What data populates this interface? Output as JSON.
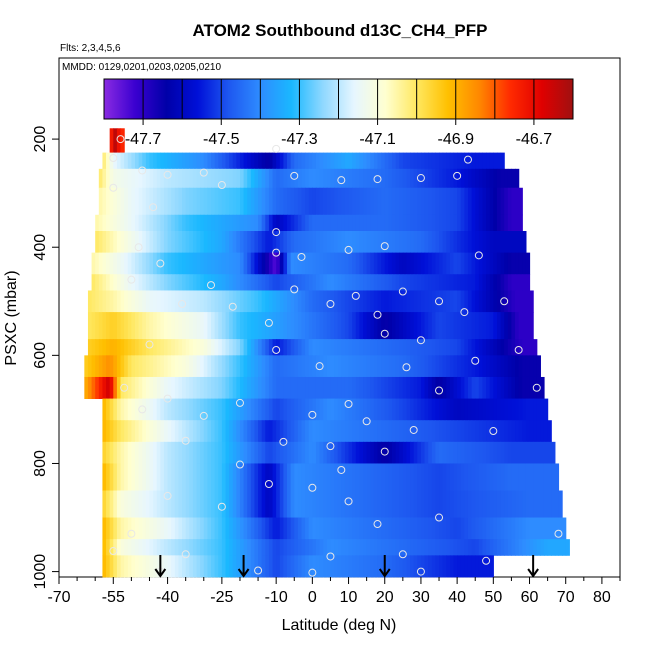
{
  "chart_data": {
    "type": "heatmap",
    "title": "ATOM2 Southbound d13C_CH4_PFP",
    "subtitle_flights": "Flts: 2,3,4,5,6",
    "subtitle_dates": "MMDD: 0129,0201,0203,0205,0210",
    "xlabel": "Latitude (deg N)",
    "ylabel": "PSXC (mbar)",
    "xlim": [
      -70,
      85
    ],
    "ylim": [
      1010,
      50
    ],
    "x_ticks": [
      -70,
      -55,
      -40,
      -25,
      -10,
      0,
      10,
      20,
      30,
      40,
      50,
      60,
      70,
      80
    ],
    "x_tick_labels": [
      "-70",
      "-55",
      "-40",
      "-25",
      "-10",
      "0",
      "10",
      "20",
      "30",
      "40",
      "50",
      "60",
      "70",
      "80"
    ],
    "y_ticks": [
      200,
      400,
      600,
      800,
      1000
    ],
    "y_tick_labels": [
      "200",
      "400",
      "600",
      "800",
      "1000"
    ],
    "colorbar": {
      "range": [
        -47.8,
        -46.6
      ],
      "tick_values": [
        -47.7,
        -47.5,
        -47.3,
        -47.1,
        -46.9,
        -46.7
      ],
      "tick_labels": [
        "-47.7",
        "-47.5",
        "-47.3",
        "-47.1",
        "-46.9",
        "-46.7"
      ],
      "colors": [
        "#8a2be2",
        "#3a00d0",
        "#0000a8",
        "#0010d8",
        "#1e58f0",
        "#2e8cff",
        "#1ab8ff",
        "#8fd8ff",
        "#e6f6ff",
        "#ffffd0",
        "#ffe860",
        "#ffc000",
        "#ff8800",
        "#ff2a00",
        "#e00000",
        "#a01010"
      ]
    },
    "bands": [
      {
        "pmin": 180,
        "pmax": 225,
        "xmin": -56,
        "xmax": -52,
        "segments": [
          [
            -56,
            -46.85
          ],
          [
            -55,
            -46.6
          ],
          [
            -53,
            -46.75
          ]
        ]
      },
      {
        "pmin": 225,
        "pmax": 255,
        "xmin": -58,
        "xmax": 53,
        "segments": [
          [
            -58,
            -47.0
          ],
          [
            -55,
            -47.15
          ],
          [
            -45,
            -47.3
          ],
          [
            -30,
            -47.4
          ],
          [
            -12,
            -47.65
          ],
          [
            -5,
            -47.45
          ],
          [
            10,
            -47.35
          ],
          [
            25,
            -47.5
          ],
          [
            45,
            -47.55
          ]
        ]
      },
      {
        "pmin": 255,
        "pmax": 290,
        "xmin": -59,
        "xmax": 57,
        "segments": [
          [
            -59,
            -47.0
          ],
          [
            -55,
            -47.12
          ],
          [
            -40,
            -47.2
          ],
          [
            -20,
            -47.25
          ],
          [
            -10,
            -47.45
          ],
          [
            0,
            -47.4
          ],
          [
            20,
            -47.45
          ],
          [
            40,
            -47.55
          ],
          [
            52,
            -47.65
          ]
        ]
      },
      {
        "pmin": 290,
        "pmax": 340,
        "xmin": -59,
        "xmax": 58,
        "segments": [
          [
            -59,
            -47.05
          ],
          [
            -50,
            -47.15
          ],
          [
            -35,
            -47.25
          ],
          [
            -20,
            -47.3
          ],
          [
            -10,
            -47.45
          ],
          [
            0,
            -47.5
          ],
          [
            20,
            -47.45
          ],
          [
            40,
            -47.5
          ],
          [
            55,
            -47.7
          ]
        ]
      },
      {
        "pmin": 340,
        "pmax": 370,
        "xmin": -60,
        "xmax": 58,
        "segments": [
          [
            -60,
            -47.05
          ],
          [
            -50,
            -47.15
          ],
          [
            -35,
            -47.3
          ],
          [
            -15,
            -47.4
          ],
          [
            -10,
            -47.6
          ],
          [
            0,
            -47.45
          ],
          [
            20,
            -47.45
          ],
          [
            40,
            -47.5
          ],
          [
            55,
            -47.7
          ]
        ]
      },
      {
        "pmin": 370,
        "pmax": 410,
        "xmin": -60,
        "xmax": 59,
        "segments": [
          [
            -60,
            -47.0
          ],
          [
            -52,
            -47.1
          ],
          [
            -40,
            -47.25
          ],
          [
            -25,
            -47.35
          ],
          [
            -12,
            -47.55
          ],
          [
            -5,
            -47.45
          ],
          [
            10,
            -47.4
          ],
          [
            30,
            -47.45
          ],
          [
            50,
            -47.6
          ]
        ]
      },
      {
        "pmin": 410,
        "pmax": 450,
        "xmin": -61,
        "xmax": 60,
        "segments": [
          [
            -61,
            -47.05
          ],
          [
            -52,
            -47.15
          ],
          [
            -40,
            -47.3
          ],
          [
            -20,
            -47.4
          ],
          [
            -10,
            -47.75
          ],
          [
            -6,
            -47.4
          ],
          [
            10,
            -47.45
          ],
          [
            25,
            -47.6
          ],
          [
            40,
            -47.5
          ],
          [
            55,
            -47.65
          ]
        ]
      },
      {
        "pmin": 450,
        "pmax": 480,
        "xmin": -61,
        "xmax": 60,
        "segments": [
          [
            -61,
            -47.0
          ],
          [
            -50,
            -47.15
          ],
          [
            -40,
            -47.25
          ],
          [
            -25,
            -47.35
          ],
          [
            -10,
            -47.5
          ],
          [
            5,
            -47.4
          ],
          [
            25,
            -47.5
          ],
          [
            45,
            -47.55
          ],
          [
            55,
            -47.7
          ]
        ]
      },
      {
        "pmin": 480,
        "pmax": 520,
        "xmin": -62,
        "xmax": 61,
        "segments": [
          [
            -62,
            -47.0
          ],
          [
            -55,
            -47.05
          ],
          [
            -45,
            -47.15
          ],
          [
            -30,
            -47.2
          ],
          [
            -15,
            -47.3
          ],
          [
            0,
            -47.45
          ],
          [
            20,
            -47.55
          ],
          [
            40,
            -47.5
          ],
          [
            56,
            -47.7
          ]
        ]
      },
      {
        "pmin": 520,
        "pmax": 570,
        "xmin": -62,
        "xmax": 61,
        "segments": [
          [
            -62,
            -47.0
          ],
          [
            -55,
            -46.95
          ],
          [
            -45,
            -47.05
          ],
          [
            -30,
            -47.15
          ],
          [
            -20,
            -47.3
          ],
          [
            -5,
            -47.4
          ],
          [
            10,
            -47.5
          ],
          [
            20,
            -47.65
          ],
          [
            35,
            -47.5
          ],
          [
            50,
            -47.55
          ],
          [
            57,
            -47.7
          ]
        ]
      },
      {
        "pmin": 570,
        "pmax": 600,
        "xmin": -62,
        "xmax": 62,
        "segments": [
          [
            -62,
            -46.95
          ],
          [
            -55,
            -46.9
          ],
          [
            -45,
            -47.0
          ],
          [
            -30,
            -47.1
          ],
          [
            -20,
            -47.25
          ],
          [
            -10,
            -47.55
          ],
          [
            0,
            -47.4
          ],
          [
            20,
            -47.45
          ],
          [
            40,
            -47.5
          ],
          [
            58,
            -47.7
          ]
        ]
      },
      {
        "pmin": 600,
        "pmax": 640,
        "xmin": -63,
        "xmax": 63,
        "segments": [
          [
            -63,
            -46.95
          ],
          [
            -56,
            -46.85
          ],
          [
            -50,
            -47.0
          ],
          [
            -35,
            -47.1
          ],
          [
            -20,
            -47.3
          ],
          [
            -10,
            -47.45
          ],
          [
            5,
            -47.4
          ],
          [
            25,
            -47.45
          ],
          [
            45,
            -47.55
          ],
          [
            58,
            -47.65
          ]
        ]
      },
      {
        "pmin": 640,
        "pmax": 680,
        "xmin": -63,
        "xmax": 64,
        "segments": [
          [
            -63,
            -46.9
          ],
          [
            -56,
            -46.65
          ],
          [
            -53,
            -47.0
          ],
          [
            -40,
            -47.15
          ],
          [
            -25,
            -47.25
          ],
          [
            -10,
            -47.45
          ],
          [
            10,
            -47.45
          ],
          [
            30,
            -47.55
          ],
          [
            35,
            -47.65
          ],
          [
            45,
            -47.5
          ],
          [
            58,
            -47.65
          ]
        ]
      },
      {
        "pmin": 680,
        "pmax": 720,
        "xmin": -58,
        "xmax": 65,
        "segments": [
          [
            -58,
            -46.9
          ],
          [
            -53,
            -47.05
          ],
          [
            -40,
            -47.2
          ],
          [
            -25,
            -47.3
          ],
          [
            -10,
            -47.5
          ],
          [
            5,
            -47.4
          ],
          [
            25,
            -47.5
          ],
          [
            40,
            -47.6
          ],
          [
            60,
            -47.55
          ]
        ]
      },
      {
        "pmin": 720,
        "pmax": 760,
        "xmin": -58,
        "xmax": 66,
        "segments": [
          [
            -58,
            -46.9
          ],
          [
            -53,
            -47.0
          ],
          [
            -40,
            -47.15
          ],
          [
            -25,
            -47.3
          ],
          [
            -12,
            -47.55
          ],
          [
            0,
            -47.4
          ],
          [
            20,
            -47.45
          ],
          [
            40,
            -47.5
          ],
          [
            60,
            -47.55
          ]
        ]
      },
      {
        "pmin": 760,
        "pmax": 800,
        "xmin": -58,
        "xmax": 67,
        "segments": [
          [
            -58,
            -46.95
          ],
          [
            -53,
            -47.05
          ],
          [
            -40,
            -47.2
          ],
          [
            -25,
            -47.3
          ],
          [
            -12,
            -47.5
          ],
          [
            0,
            -47.4
          ],
          [
            20,
            -47.65
          ],
          [
            35,
            -47.45
          ],
          [
            55,
            -47.5
          ]
        ]
      },
      {
        "pmin": 800,
        "pmax": 850,
        "xmin": -58,
        "xmax": 68,
        "segments": [
          [
            -58,
            -46.9
          ],
          [
            -53,
            -47.05
          ],
          [
            -40,
            -47.2
          ],
          [
            -25,
            -47.3
          ],
          [
            -12,
            -47.6
          ],
          [
            -5,
            -47.4
          ],
          [
            15,
            -47.45
          ],
          [
            35,
            -47.5
          ],
          [
            55,
            -47.45
          ]
        ]
      },
      {
        "pmin": 850,
        "pmax": 900,
        "xmin": -58,
        "xmax": 69,
        "segments": [
          [
            -58,
            -46.95
          ],
          [
            -53,
            -47.1
          ],
          [
            -40,
            -47.2
          ],
          [
            -25,
            -47.3
          ],
          [
            -12,
            -47.6
          ],
          [
            -5,
            -47.4
          ],
          [
            15,
            -47.45
          ],
          [
            35,
            -47.5
          ],
          [
            60,
            -47.45
          ]
        ]
      },
      {
        "pmin": 900,
        "pmax": 940,
        "xmin": -58,
        "xmax": 70,
        "segments": [
          [
            -58,
            -46.9
          ],
          [
            -53,
            -47.05
          ],
          [
            -40,
            -47.15
          ],
          [
            -25,
            -47.3
          ],
          [
            -10,
            -47.55
          ],
          [
            0,
            -47.4
          ],
          [
            20,
            -47.45
          ],
          [
            40,
            -47.5
          ],
          [
            60,
            -47.4
          ]
        ]
      },
      {
        "pmin": 940,
        "pmax": 970,
        "xmin": -58,
        "xmax": 71,
        "segments": [
          [
            -58,
            -46.9
          ],
          [
            -53,
            -47.1
          ],
          [
            -40,
            -47.2
          ],
          [
            -25,
            -47.3
          ],
          [
            -10,
            -47.5
          ],
          [
            5,
            -47.4
          ],
          [
            25,
            -47.45
          ],
          [
            45,
            -47.5
          ],
          [
            65,
            -47.35
          ]
        ]
      },
      {
        "pmin": 970,
        "pmax": 1010,
        "xmin": -58,
        "xmax": 50,
        "segments": [
          [
            -58,
            -46.9
          ],
          [
            -53,
            -47.05
          ],
          [
            -40,
            -47.15
          ],
          [
            -25,
            -47.3
          ],
          [
            -10,
            -47.5
          ],
          [
            0,
            -47.4
          ],
          [
            20,
            -47.45
          ],
          [
            40,
            -47.55
          ]
        ]
      }
    ],
    "sample_points": [
      {
        "x": -53,
        "y": 200
      },
      {
        "x": -55,
        "y": 235
      },
      {
        "x": -10,
        "y": 218
      },
      {
        "x": 43,
        "y": 238
      },
      {
        "x": -47,
        "y": 258
      },
      {
        "x": -40,
        "y": 266
      },
      {
        "x": -30,
        "y": 262
      },
      {
        "x": -5,
        "y": 268
      },
      {
        "x": 8,
        "y": 276
      },
      {
        "x": 18,
        "y": 274
      },
      {
        "x": 30,
        "y": 272
      },
      {
        "x": 40,
        "y": 268
      },
      {
        "x": -25,
        "y": 285
      },
      {
        "x": -55,
        "y": 290
      },
      {
        "x": -44,
        "y": 326
      },
      {
        "x": -10,
        "y": 372
      },
      {
        "x": 20,
        "y": 398
      },
      {
        "x": -48,
        "y": 400
      },
      {
        "x": -10,
        "y": 410
      },
      {
        "x": 10,
        "y": 405
      },
      {
        "x": -3,
        "y": 418
      },
      {
        "x": -42,
        "y": 430
      },
      {
        "x": 46,
        "y": 415
      },
      {
        "x": -50,
        "y": 460
      },
      {
        "x": -28,
        "y": 470
      },
      {
        "x": -5,
        "y": 478
      },
      {
        "x": 12,
        "y": 490
      },
      {
        "x": 25,
        "y": 482
      },
      {
        "x": 35,
        "y": 500
      },
      {
        "x": 53,
        "y": 500
      },
      {
        "x": -36,
        "y": 505
      },
      {
        "x": -22,
        "y": 510
      },
      {
        "x": 5,
        "y": 505
      },
      {
        "x": 18,
        "y": 525
      },
      {
        "x": 42,
        "y": 520
      },
      {
        "x": -12,
        "y": 540
      },
      {
        "x": 20,
        "y": 560
      },
      {
        "x": 30,
        "y": 572
      },
      {
        "x": -10,
        "y": 590
      },
      {
        "x": -45,
        "y": 580
      },
      {
        "x": 2,
        "y": 620
      },
      {
        "x": 26,
        "y": 622
      },
      {
        "x": 45,
        "y": 610
      },
      {
        "x": 57,
        "y": 590
      },
      {
        "x": -52,
        "y": 660
      },
      {
        "x": -40,
        "y": 680
      },
      {
        "x": -20,
        "y": 688
      },
      {
        "x": 10,
        "y": 690
      },
      {
        "x": 35,
        "y": 665
      },
      {
        "x": 62,
        "y": 660
      },
      {
        "x": -47,
        "y": 700
      },
      {
        "x": -30,
        "y": 712
      },
      {
        "x": 0,
        "y": 710
      },
      {
        "x": 15,
        "y": 722
      },
      {
        "x": 28,
        "y": 738
      },
      {
        "x": 50,
        "y": 740
      },
      {
        "x": -35,
        "y": 758
      },
      {
        "x": -8,
        "y": 760
      },
      {
        "x": 5,
        "y": 768
      },
      {
        "x": 20,
        "y": 778
      },
      {
        "x": -20,
        "y": 802
      },
      {
        "x": 8,
        "y": 812
      },
      {
        "x": -12,
        "y": 838
      },
      {
        "x": 0,
        "y": 845
      },
      {
        "x": -40,
        "y": 860
      },
      {
        "x": 10,
        "y": 870
      },
      {
        "x": -25,
        "y": 880
      },
      {
        "x": 35,
        "y": 900
      },
      {
        "x": 18,
        "y": 912
      },
      {
        "x": -50,
        "y": 930
      },
      {
        "x": 68,
        "y": 930
      },
      {
        "x": -55,
        "y": 962
      },
      {
        "x": -35,
        "y": 968
      },
      {
        "x": 5,
        "y": 972
      },
      {
        "x": 25,
        "y": 968
      },
      {
        "x": 48,
        "y": 980
      },
      {
        "x": -42,
        "y": 1000
      },
      {
        "x": -15,
        "y": 998
      },
      {
        "x": 0,
        "y": 1002
      },
      {
        "x": 30,
        "y": 1000
      }
    ],
    "arrows_x": [
      -42,
      -19,
      20,
      61
    ]
  }
}
